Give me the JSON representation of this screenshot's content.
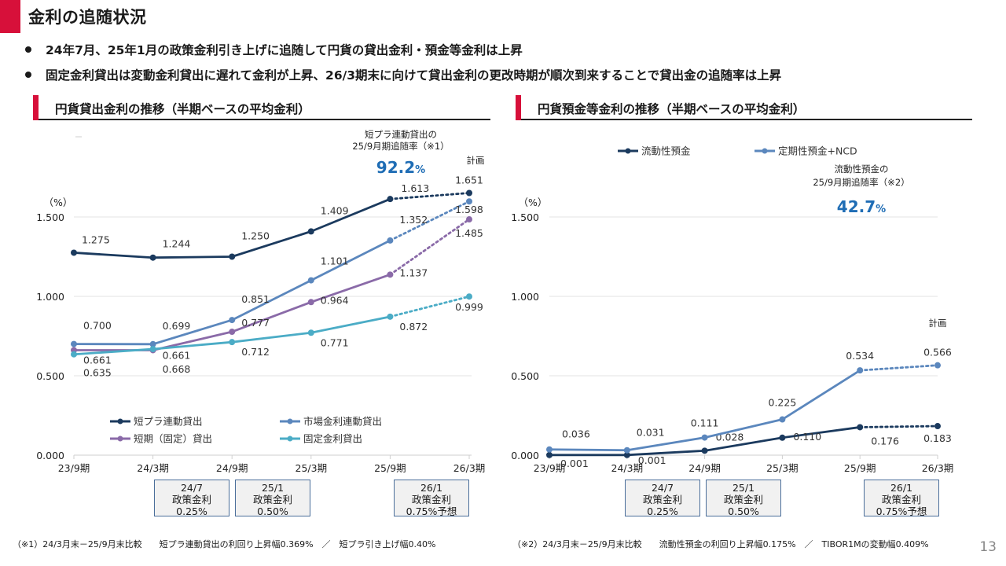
{
  "page_title": "金利の追随状況",
  "bullets": [
    "24年7月、25年1月の政策金利引き上げに追随して円貨の貸出金利・預金等金利は上昇",
    "固定金利貸出は変動金利貸出に遅れて金利が上昇、26/3期末に向けて貸出金利の更改時期が順次到来することで貸出金の追随率は上昇"
  ],
  "colors": {
    "accent_red": "#d7103a",
    "highlight_blue": "#1f6db5"
  },
  "page_number": "13",
  "chart_data": [
    {
      "type": "line",
      "title": "円貨貸出金利の推移（半期ベースの平均金利）",
      "ylabel": "（%）",
      "ylim": [
        0,
        1.5
      ],
      "yticks": [
        "0.000",
        "0.500",
        "1.000",
        "1.500"
      ],
      "ytick_values": [
        0,
        0.5,
        1.0,
        1.5
      ],
      "categories": [
        "23/9期",
        "24/3期",
        "24/9期",
        "25/3期",
        "25/9期",
        "26/3期"
      ],
      "plan_label": "計画",
      "plan_note": "26/3期は計画値（点線）",
      "grid": true,
      "legend_position": "bottom",
      "series": [
        {
          "name": "短プラ連動貸出",
          "color": "#1b3a5e",
          "values": [
            1.275,
            1.244,
            1.25,
            1.409,
            1.613,
            1.651
          ],
          "labels": [
            "1.275",
            "1.244",
            "1.250",
            "1.409",
            "1.613",
            "1.651"
          ]
        },
        {
          "name": "市場金利連動貸出",
          "color": "#5b87bd",
          "values": [
            0.7,
            0.699,
            0.851,
            1.101,
            1.352,
            1.598
          ],
          "labels": [
            "0.700",
            "0.699",
            "0.851",
            "1.101",
            "1.352",
            "1.598"
          ]
        },
        {
          "name": "短期（固定）貸出",
          "color": "#8a6aa8",
          "values": [
            0.661,
            0.661,
            0.777,
            0.964,
            1.137,
            1.485
          ],
          "labels": [
            "0.661",
            "0.661",
            "0.777",
            "0.964",
            "1.137",
            "1.485"
          ]
        },
        {
          "name": "固定金利貸出",
          "color": "#4bacc6",
          "values": [
            0.635,
            0.668,
            0.712,
            0.771,
            0.872,
            0.999
          ],
          "labels": [
            "0.635",
            "0.668",
            "0.712",
            "0.771",
            "0.872",
            "0.999"
          ]
        }
      ],
      "annotation": {
        "line1": "短プラ連動貸出の",
        "line2": "25/9月期追随率（※1）",
        "value": "92.2",
        "unit": "%"
      },
      "event_boxes": [
        {
          "date": "24/7",
          "label": "政策金利",
          "rate": "0.25%"
        },
        {
          "date": "25/1",
          "label": "政策金利",
          "rate": "0.50%"
        },
        {
          "date": "26/1",
          "label": "政策金利",
          "rate": "0.75%予想"
        }
      ],
      "footnote": "（※1）24/3月末－25/9月末比較　　短プラ連動貸出の利回り上昇幅0.369%　／　短プラ引き上げ幅0.40%"
    },
    {
      "type": "line",
      "title": "円貨預金等金利の推移（半期ベースの平均金利）",
      "ylabel": "（%）",
      "ylim": [
        0,
        1.5
      ],
      "yticks": [
        "0.000",
        "0.500",
        "1.000",
        "1.500"
      ],
      "ytick_values": [
        0,
        0.5,
        1.0,
        1.5
      ],
      "categories": [
        "23/9期",
        "24/3期",
        "24/9期",
        "25/3期",
        "25/9期",
        "26/3期"
      ],
      "plan_label": "計画",
      "grid": true,
      "legend_position": "top",
      "series": [
        {
          "name": "流動性預金",
          "color": "#1b3a5e",
          "values": [
            0.001,
            0.001,
            0.028,
            0.11,
            0.176,
            0.183
          ],
          "labels": [
            "0.001",
            "0.001",
            "0.028",
            "0.110",
            "0.176",
            "0.183"
          ]
        },
        {
          "name": "定期性預金+NCD",
          "color": "#5b87bd",
          "values": [
            0.036,
            0.031,
            0.111,
            0.225,
            0.534,
            0.566
          ],
          "labels": [
            "0.036",
            "0.031",
            "0.111",
            "0.225",
            "0.534",
            "0.566"
          ]
        }
      ],
      "annotation": {
        "line1": "流動性預金の",
        "line2": "25/9月期追随率（※2）",
        "value": "42.7",
        "unit": "%"
      },
      "event_boxes": [
        {
          "date": "24/7",
          "label": "政策金利",
          "rate": "0.25%"
        },
        {
          "date": "25/1",
          "label": "政策金利",
          "rate": "0.50%"
        },
        {
          "date": "26/1",
          "label": "政策金利",
          "rate": "0.75%予想"
        }
      ],
      "footnote": "（※2）24/3月末－25/9月末比較　　流動性預金の利回り上昇幅0.175%　／　TIBOR1Mの変動幅0.409%"
    }
  ]
}
